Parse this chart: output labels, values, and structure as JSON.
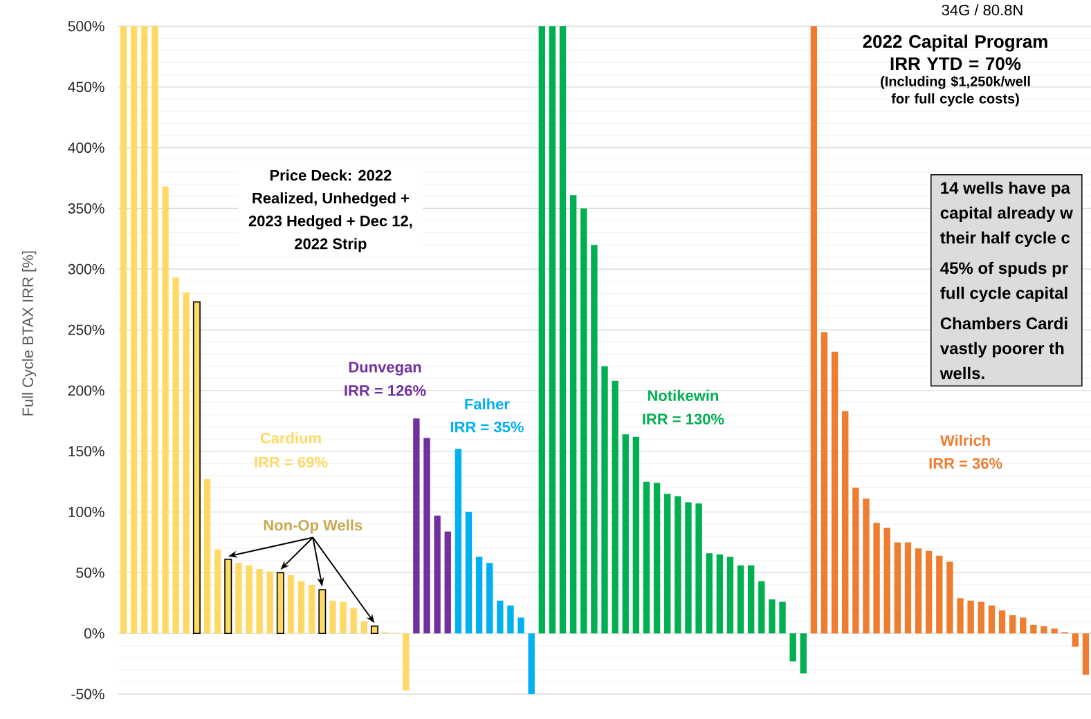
{
  "chart_data": {
    "type": "bar",
    "title": "2022 Capital Program IRR YTD = 70%",
    "subtitle": "(Including $1,250k/well for full cycle costs)",
    "ylabel": "Full Cycle BTAX IRR [%]",
    "annotations": [
      "34G / 80.8N",
      "Price Deck: 2022 Realized, Unhedged + 2023 Hedged + Dec 12, 2022 Strip",
      "IRR = 69%",
      "IRR = 126%",
      "IRR = 35%",
      "IRR = 130%",
      "IRR = 36%",
      "14 wells have pa",
      "capital already w",
      "their half cycle c",
      "45% of spuds pr",
      "full cycle capital",
      "Chambers Cardi",
      "vastly poorer th",
      "wells."
    ],
    "categories": [
      null,
      null,
      null,
      null,
      null,
      null,
      null,
      null,
      null,
      null,
      null,
      null,
      null,
      null,
      null,
      null,
      null,
      null,
      null,
      null,
      null,
      null,
      null,
      null,
      null,
      null,
      null,
      null,
      null,
      null,
      null,
      null,
      null,
      null,
      null,
      null,
      null,
      null,
      null,
      null,
      null,
      null,
      null,
      null,
      null,
      null,
      null,
      null,
      null,
      null,
      null,
      null,
      null,
      null,
      null,
      null,
      null,
      null,
      null,
      null,
      null,
      null,
      null,
      null,
      null,
      null,
      null,
      null,
      null,
      null,
      null,
      null,
      null,
      null,
      null,
      null,
      null,
      null,
      null,
      null,
      null,
      null,
      null,
      null,
      null,
      null,
      null,
      null,
      null,
      null,
      null,
      null,
      null
    ],
    "series": [
      {
        "name": "Cardium",
        "color": "#ffd966",
        "values": [
          500,
          500,
          500,
          500,
          368,
          293,
          281,
          null,
          127,
          69,
          null,
          58,
          56,
          53,
          51,
          null,
          48,
          43,
          40,
          null,
          27,
          26,
          21,
          10,
          null,
          1,
          0.5,
          -47,
          null,
          null,
          null,
          null,
          null,
          null,
          null,
          null,
          null,
          null,
          null,
          null,
          null,
          null,
          null,
          null,
          null,
          null,
          null,
          null,
          null,
          null,
          null,
          null,
          null,
          null,
          null,
          null,
          null,
          null,
          null,
          null,
          null,
          null,
          null,
          null,
          null,
          null,
          null,
          null,
          null,
          null,
          null,
          null,
          null,
          null,
          null,
          null,
          null,
          null,
          null,
          null,
          null,
          null,
          null,
          null,
          null,
          null,
          null,
          null,
          null,
          null,
          null,
          null,
          null
        ]
      },
      {
        "name": "Dunvegan",
        "color": "#7030a0",
        "values": [
          null,
          null,
          null,
          null,
          null,
          null,
          null,
          null,
          null,
          null,
          null,
          null,
          null,
          null,
          null,
          null,
          null,
          null,
          null,
          null,
          null,
          null,
          null,
          null,
          null,
          null,
          null,
          null,
          177,
          161,
          97,
          84,
          null,
          null,
          null,
          null,
          null,
          null,
          null,
          null,
          null,
          null,
          null,
          null,
          null,
          null,
          null,
          null,
          null,
          null,
          null,
          null,
          null,
          null,
          null,
          null,
          null,
          null,
          null,
          null,
          null,
          null,
          null,
          null,
          null,
          null,
          null,
          null,
          null,
          null,
          null,
          null,
          null,
          null,
          null,
          null,
          null,
          null,
          null,
          null,
          null,
          null,
          null,
          null,
          null,
          null,
          null,
          null,
          null,
          null,
          null,
          null,
          null
        ]
      },
      {
        "name": "Falher",
        "color": "#00b0f0",
        "values": [
          null,
          null,
          null,
          null,
          null,
          null,
          null,
          null,
          null,
          null,
          null,
          null,
          null,
          null,
          null,
          null,
          null,
          null,
          null,
          null,
          null,
          null,
          null,
          null,
          null,
          null,
          null,
          null,
          null,
          null,
          null,
          null,
          152,
          100,
          63,
          58,
          27,
          23,
          13,
          -50,
          null,
          null,
          null,
          null,
          null,
          null,
          null,
          null,
          null,
          null,
          null,
          null,
          null,
          null,
          null,
          null,
          null,
          null,
          null,
          null,
          null,
          null,
          null,
          null,
          null,
          null,
          null,
          null,
          null,
          null,
          null,
          null,
          null,
          null,
          null,
          null,
          null,
          null,
          null,
          null,
          null,
          null,
          null,
          null,
          null,
          null,
          null,
          null,
          null,
          null,
          null,
          null,
          null
        ]
      },
      {
        "name": "Notikewin",
        "color": "#00b050",
        "values": [
          null,
          null,
          null,
          null,
          null,
          null,
          null,
          null,
          null,
          null,
          null,
          null,
          null,
          null,
          null,
          null,
          null,
          null,
          null,
          null,
          null,
          null,
          null,
          null,
          null,
          null,
          null,
          null,
          null,
          null,
          null,
          null,
          null,
          null,
          null,
          null,
          null,
          null,
          null,
          null,
          500,
          500,
          500,
          361,
          350,
          320,
          220,
          208,
          164,
          162,
          125,
          124,
          115,
          113,
          108,
          107,
          66,
          65,
          63,
          56,
          56,
          43,
          28,
          26,
          -23,
          -33,
          null,
          null,
          null,
          null,
          null,
          null,
          null,
          null,
          null,
          null,
          null,
          null,
          null,
          null,
          null,
          null,
          null,
          null,
          null,
          null,
          null,
          null,
          null,
          null,
          null,
          null,
          null
        ]
      },
      {
        "name": "Wilrich",
        "color": "#ed7d31",
        "values": [
          null,
          null,
          null,
          null,
          null,
          null,
          null,
          null,
          null,
          null,
          null,
          null,
          null,
          null,
          null,
          null,
          null,
          null,
          null,
          null,
          null,
          null,
          null,
          null,
          null,
          null,
          null,
          null,
          null,
          null,
          null,
          null,
          null,
          null,
          null,
          null,
          null,
          null,
          null,
          null,
          null,
          null,
          null,
          null,
          null,
          null,
          null,
          null,
          null,
          null,
          null,
          null,
          null,
          null,
          null,
          null,
          null,
          null,
          null,
          null,
          null,
          null,
          null,
          null,
          null,
          null,
          500,
          248,
          232,
          183,
          120,
          111,
          91,
          87,
          75,
          75,
          70,
          68,
          64,
          59,
          29,
          27,
          26,
          23,
          19,
          15,
          13,
          7,
          6,
          4,
          1,
          -11,
          -34
        ]
      },
      {
        "name": "Non-Op Wells",
        "color": "#ffd966",
        "line_style": "solid",
        "values": [
          null,
          null,
          null,
          null,
          null,
          null,
          null,
          273,
          null,
          null,
          61,
          null,
          null,
          null,
          null,
          50,
          null,
          null,
          null,
          36,
          null,
          null,
          null,
          null,
          6,
          null,
          null,
          null,
          null,
          null,
          null,
          null,
          null,
          null,
          null,
          null,
          null,
          null,
          null,
          null,
          null,
          null,
          null,
          null,
          null,
          null,
          null,
          null,
          null,
          null,
          null,
          null,
          null,
          null,
          null,
          null,
          null,
          null,
          null,
          null,
          null,
          null,
          null,
          null,
          null,
          null,
          null,
          null,
          null,
          null,
          null,
          null,
          null,
          null,
          null,
          null,
          null,
          null,
          null,
          null,
          null,
          null,
          null,
          null,
          null,
          null,
          null,
          null,
          null,
          null,
          null,
          null,
          null
        ]
      }
    ],
    "ylim": [
      -50,
      500
    ],
    "yticks": [
      {
        "value": -50,
        "label": "-50%"
      },
      {
        "value": -40,
        "label": null
      },
      {
        "value": -30,
        "label": null
      },
      {
        "value": -20,
        "label": null
      },
      {
        "value": -10,
        "label": null
      },
      {
        "value": 0,
        "label": "0%"
      },
      {
        "value": 10,
        "label": null
      },
      {
        "value": 20,
        "label": null
      },
      {
        "value": 30,
        "label": null
      },
      {
        "value": 40,
        "label": null
      },
      {
        "value": 50,
        "label": "50%"
      },
      {
        "value": 60,
        "label": null
      },
      {
        "value": 70,
        "label": null
      },
      {
        "value": 80,
        "label": null
      },
      {
        "value": 90,
        "label": null
      },
      {
        "value": 100,
        "label": "100%"
      },
      {
        "value": 110,
        "label": null
      },
      {
        "value": 120,
        "label": null
      },
      {
        "value": 130,
        "label": null
      },
      {
        "value": 140,
        "label": null
      },
      {
        "value": 150,
        "label": "150%"
      },
      {
        "value": 160,
        "label": null
      },
      {
        "value": 170,
        "label": null
      },
      {
        "value": 180,
        "label": null
      },
      {
        "value": 190,
        "label": null
      },
      {
        "value": 200,
        "label": "200%"
      },
      {
        "value": 210,
        "label": null
      },
      {
        "value": 220,
        "label": null
      },
      {
        "value": 230,
        "label": null
      },
      {
        "value": 240,
        "label": null
      },
      {
        "value": 250,
        "label": "250%"
      },
      {
        "value": 260,
        "label": null
      },
      {
        "value": 270,
        "label": null
      },
      {
        "value": 280,
        "label": null
      },
      {
        "value": 290,
        "label": null
      },
      {
        "value": 300,
        "label": "300%"
      },
      {
        "value": 310,
        "label": null
      },
      {
        "value": 320,
        "label": null
      },
      {
        "value": 330,
        "label": null
      },
      {
        "value": 340,
        "label": null
      },
      {
        "value": 350,
        "label": "350%"
      },
      {
        "value": 360,
        "label": null
      },
      {
        "value": 370,
        "label": null
      },
      {
        "value": 380,
        "label": null
      },
      {
        "value": 390,
        "label": null
      },
      {
        "value": 400,
        "label": "400%"
      },
      {
        "value": 410,
        "label": null
      },
      {
        "value": 420,
        "label": null
      },
      {
        "value": 430,
        "label": null
      },
      {
        "value": 440,
        "label": null
      },
      {
        "value": 450,
        "label": "450%"
      },
      {
        "value": 460,
        "label": null
      },
      {
        "value": 470,
        "label": null
      },
      {
        "value": 480,
        "label": null
      },
      {
        "value": 490,
        "label": null
      },
      {
        "value": 500,
        "label": "500%"
      }
    ],
    "grid": "y",
    "tick_labels": "y"
  }
}
